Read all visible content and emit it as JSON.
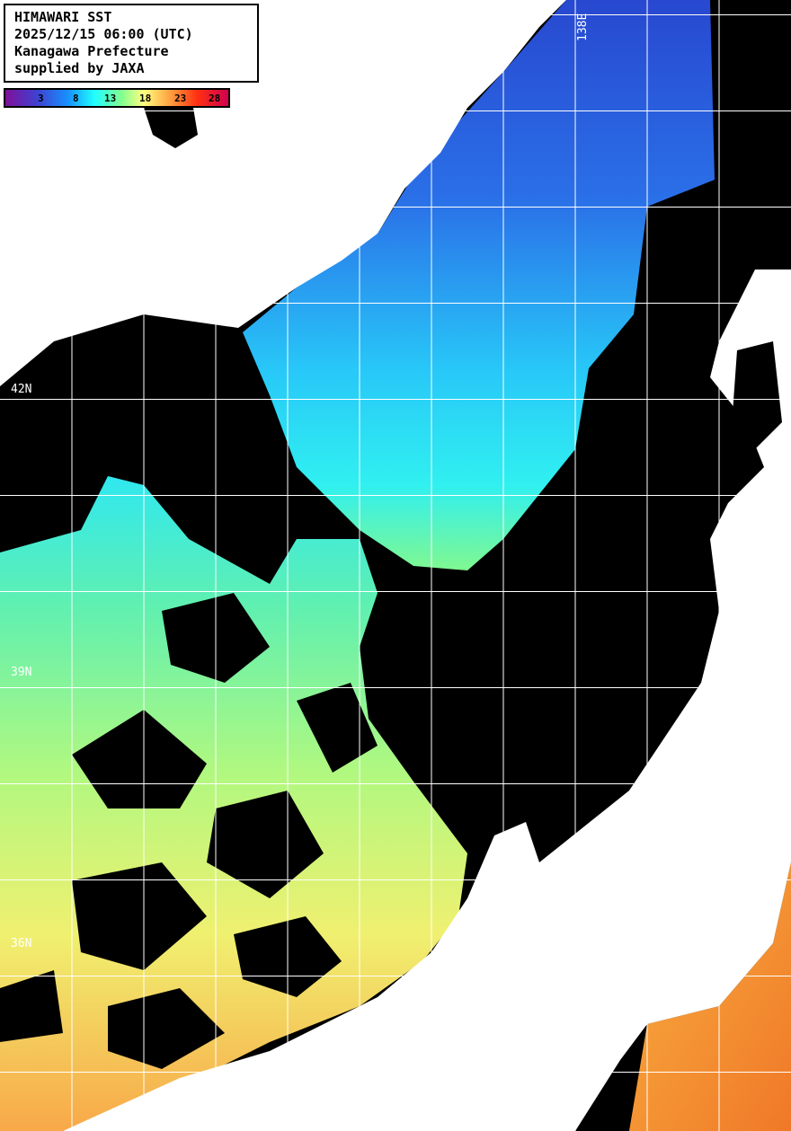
{
  "header": {
    "title": "HIMAWARI SST",
    "datetime": "2025/12/15 06:00 (UTC)",
    "region": "Kanagawa Prefecture",
    "credit": "supplied by JAXA"
  },
  "colorbar": {
    "ticks": [
      "3",
      "8",
      "13",
      "18",
      "23",
      "28"
    ],
    "colors": [
      "#80109a",
      "#4040d0",
      "#1890ff",
      "#20ffff",
      "#80ff90",
      "#ffff80",
      "#ffa040",
      "#ff3010",
      "#d00050"
    ]
  },
  "grid_labels": {
    "lat": [
      "42N",
      "39N",
      "36N"
    ],
    "lon": [
      "138E"
    ]
  },
  "colors": {
    "land": "#ffffff",
    "no_data": "#000000",
    "grid": "#ffffff"
  }
}
